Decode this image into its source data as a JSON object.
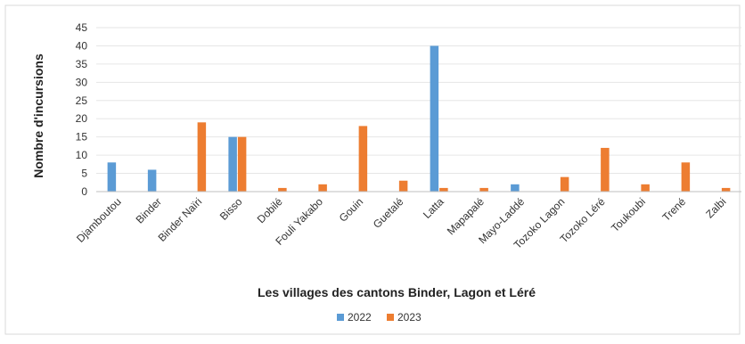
{
  "chart_data": {
    "type": "bar",
    "title": "",
    "xlabel": "Les villages des cantons Binder, Lagon et Léré",
    "ylabel": "Nombre d'incursions",
    "ylim": [
      0,
      45
    ],
    "yticks": [
      0,
      5,
      10,
      15,
      20,
      25,
      30,
      35,
      40,
      45
    ],
    "grid": true,
    "legend_position": "bottom",
    "categories": [
      "Djamboutou",
      "Binder",
      "Binder Naïri",
      "Bisso",
      "Dobilé",
      "Fouli Yakabo",
      "Gouin",
      "Guetalé",
      "Latta",
      "Mapapalé",
      "Mayo-Laddé",
      "Tozoko Lagon",
      "Tozoko Léré",
      "Toukoubi",
      "Trené",
      "Zalbi"
    ],
    "series": [
      {
        "name": "2022",
        "color": "#5B9BD5",
        "values": [
          8,
          6,
          0,
          15,
          0,
          0,
          0,
          0,
          40,
          0,
          2,
          0,
          0,
          0,
          0,
          0
        ]
      },
      {
        "name": "2023",
        "color": "#ED7D31",
        "values": [
          0,
          0,
          19,
          15,
          1,
          2,
          18,
          3,
          1,
          1,
          0,
          4,
          12,
          2,
          8,
          1
        ]
      }
    ]
  }
}
